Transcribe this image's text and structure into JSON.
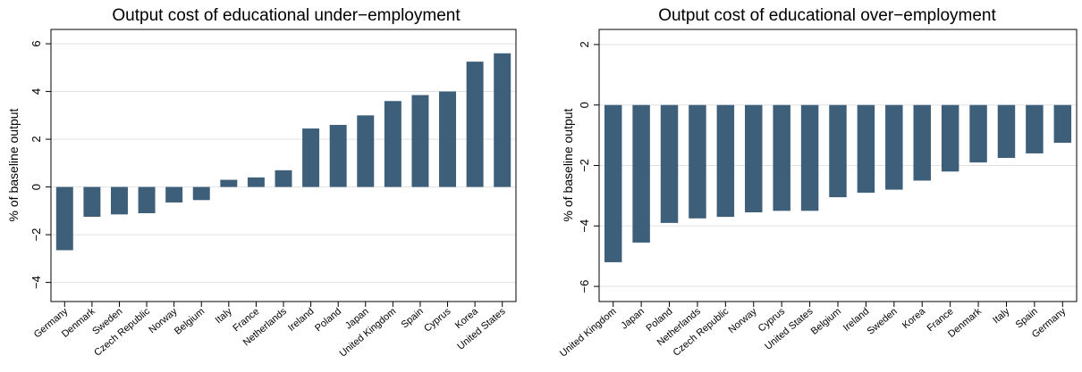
{
  "colors": {
    "bar": "#3e5f7a",
    "grid": "#e2e2e2",
    "frame": "#000000"
  },
  "chart_data": [
    {
      "type": "bar",
      "title": "Output cost of educational under−employment",
      "ylabel": "% of baseline output",
      "xlabel": "",
      "ylim": [
        -4.8,
        6.6
      ],
      "yticks": [
        -4,
        -2,
        0,
        2,
        4,
        6
      ],
      "ytick_labels": [
        "−4",
        "−2",
        "0",
        "2",
        "4",
        "6"
      ],
      "grid": true,
      "categories": [
        "Germany",
        "Denmark",
        "Sweden",
        "Czech Republic",
        "Norway",
        "Belgium",
        "Italy",
        "France",
        "Netherlands",
        "Ireland",
        "Poland",
        "Japan",
        "United Kingdom",
        "Spain",
        "Cyprus",
        "Korea",
        "United States"
      ],
      "values": [
        -2.65,
        -1.25,
        -1.15,
        -1.1,
        -0.65,
        -0.55,
        0.3,
        0.4,
        0.7,
        2.45,
        2.6,
        3.0,
        3.6,
        3.85,
        4.0,
        5.25,
        5.6
      ]
    },
    {
      "type": "bar",
      "title": "Output cost of educational over−employment",
      "ylabel": "% of baseline output",
      "xlabel": "",
      "ylim": [
        -6.5,
        2.5
      ],
      "yticks": [
        -6,
        -4,
        -2,
        0,
        2
      ],
      "ytick_labels": [
        "−6",
        "−4",
        "−2",
        "0",
        "2"
      ],
      "grid": true,
      "categories": [
        "United Kingdom",
        "Japan",
        "Poland",
        "Netherlands",
        "Czech Republic",
        "Norway",
        "Cyprus",
        "United States",
        "Belgium",
        "Ireland",
        "Sweden",
        "Korea",
        "France",
        "Denmark",
        "Italy",
        "Spain",
        "Germany"
      ],
      "values": [
        -5.2,
        -4.55,
        -3.9,
        -3.75,
        -3.7,
        -3.55,
        -3.5,
        -3.5,
        -3.05,
        -2.9,
        -2.8,
        -2.5,
        -2.2,
        -1.9,
        -1.75,
        -1.6,
        -1.25
      ]
    }
  ]
}
